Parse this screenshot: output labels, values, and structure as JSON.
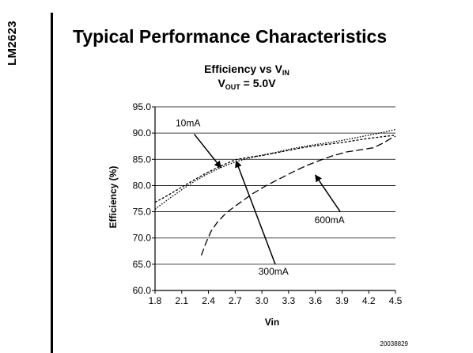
{
  "side_label": "LM2623",
  "heading": "Typical Performance Characteristics",
  "figure_number": "20038829",
  "chart_data": {
    "type": "line",
    "title": {
      "line1": {
        "text": "Efficiency vs V",
        "sub": "IN"
      },
      "line2": {
        "text": "V",
        "sub": "OUT",
        "rest": " = 5.0V"
      }
    },
    "xlabel": "Vin",
    "ylabel": "Efficiency (%)",
    "xlim": [
      1.8,
      4.5
    ],
    "ylim": [
      60.0,
      95.0
    ],
    "x_ticks": [
      "1.8",
      "2.1",
      "2.4",
      "2.7",
      "3.0",
      "3.3",
      "3.6",
      "3.9",
      "4.2",
      "4.5"
    ],
    "x_tick_values": [
      1.8,
      2.1,
      2.4,
      2.7,
      3.0,
      3.3,
      3.6,
      3.9,
      4.2,
      4.5
    ],
    "y_ticks": [
      "60.0",
      "65.0",
      "70.0",
      "75.0",
      "80.0",
      "85.0",
      "90.0",
      "95.0"
    ],
    "y_tick_values": [
      60,
      65,
      70,
      75,
      80,
      85,
      90,
      95
    ],
    "grid": "horizontal",
    "series": [
      {
        "name": "10mA",
        "style": "dotted",
        "x": [
          1.8,
          1.95,
          2.1,
          2.25,
          2.4,
          2.55,
          2.7,
          2.85,
          3.0,
          3.15,
          3.3,
          3.45,
          3.6,
          3.75,
          3.9,
          4.05,
          4.2,
          4.35,
          4.5
        ],
        "y": [
          75.5,
          77.4,
          79.2,
          80.9,
          82.3,
          83.5,
          84.5,
          85.2,
          85.8,
          86.3,
          86.9,
          87.4,
          87.8,
          88.2,
          88.6,
          89.1,
          89.6,
          90.1,
          90.7
        ]
      },
      {
        "name": "300mA",
        "style": "short-dash",
        "x": [
          1.8,
          1.95,
          2.1,
          2.25,
          2.4,
          2.55,
          2.7,
          2.85,
          3.0,
          3.15,
          3.3,
          3.45,
          3.6,
          3.75,
          3.9,
          4.05,
          4.2,
          4.35,
          4.5
        ],
        "y": [
          76.8,
          78.2,
          79.7,
          81.2,
          82.6,
          83.8,
          84.9,
          85.4,
          85.7,
          86.2,
          86.7,
          87.2,
          87.6,
          87.9,
          88.2,
          88.6,
          89.0,
          89.3,
          89.6
        ]
      },
      {
        "name": "600mA",
        "style": "long-dash",
        "x": [
          2.32,
          2.37,
          2.43,
          2.5,
          2.6,
          2.75,
          2.9,
          3.05,
          3.2,
          3.35,
          3.5,
          3.65,
          3.8,
          3.95,
          4.1,
          4.25,
          4.35,
          4.45,
          4.5
        ],
        "y": [
          66.7,
          69.0,
          71.3,
          73.0,
          74.8,
          76.7,
          78.5,
          80.0,
          81.3,
          82.6,
          83.8,
          84.8,
          85.7,
          86.4,
          86.8,
          87.2,
          88.0,
          89.0,
          89.4
        ]
      }
    ],
    "annotations": [
      {
        "label": "10mA",
        "text_at": [
          2.17,
          91.3
        ],
        "arrow_from": [
          2.24,
          89.8
        ],
        "arrow_to": [
          2.54,
          83.4
        ]
      },
      {
        "label": "300mA",
        "text_at": [
          3.13,
          63.0
        ],
        "arrow_from": [
          3.15,
          65.0
        ],
        "arrow_to": [
          2.71,
          84.7
        ]
      },
      {
        "label": "600mA",
        "text_at": [
          3.76,
          72.8
        ],
        "arrow_from": [
          3.88,
          75.0
        ],
        "arrow_to": [
          3.6,
          82.0
        ]
      }
    ]
  }
}
